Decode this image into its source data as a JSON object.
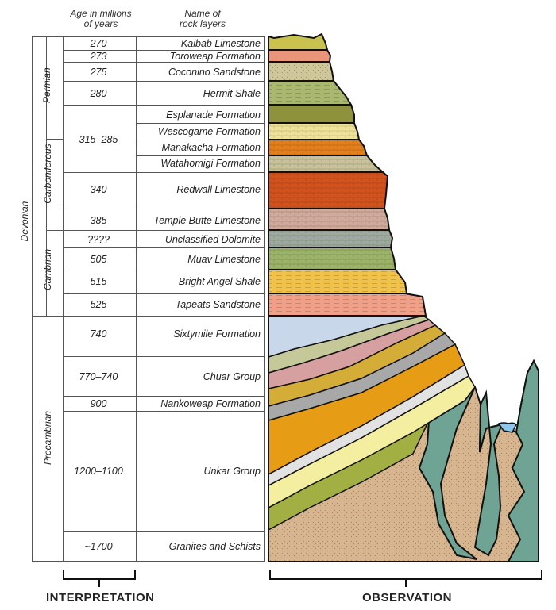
{
  "headers": {
    "age": [
      "Age in millions",
      "of years"
    ],
    "name": [
      "Name of",
      "rock layers"
    ]
  },
  "layers": [
    {
      "age": "270",
      "name": "Kaibab Limestone"
    },
    {
      "age": "273",
      "name": "Toroweap Formation"
    },
    {
      "age": "275",
      "name": "Coconino Sandstone"
    },
    {
      "age": "280",
      "name": "Hermit Shale"
    },
    {
      "age": "",
      "name": "Esplanade Formation"
    },
    {
      "age": "",
      "name": "Wescogame Formation"
    },
    {
      "age": "315–285",
      "name": "Manakacha Formation"
    },
    {
      "age": "",
      "name": "Watahomigi Formation"
    },
    {
      "age": "340",
      "name": "Redwall Limestone"
    },
    {
      "age": "385",
      "name": "Temple Butte Limestone"
    },
    {
      "age": "????",
      "name": "Unclassified Dolomite"
    },
    {
      "age": "505",
      "name": "Muav Limestone"
    },
    {
      "age": "515",
      "name": "Bright Angel Shale"
    },
    {
      "age": "525",
      "name": "Tapeats Sandstone"
    },
    {
      "age": "740",
      "name": "Sixtymile Formation"
    },
    {
      "age": "770–740",
      "name": "Chuar Group"
    },
    {
      "age": "900",
      "name": "Nankoweap Formation"
    },
    {
      "age": "1200–1100",
      "name": "Unkar Group"
    },
    {
      "age": "~1700",
      "name": "Granites and Schists"
    }
  ],
  "eras": {
    "permian": "Permian",
    "carboniferous": "Carboniferous",
    "devonian": "Devonian",
    "cambrian": "Cambrian",
    "precambrian": "Precambrian"
  },
  "footer": {
    "interpretation": "INTERPRETATION",
    "observation": "OBSERVATION"
  },
  "colors": {
    "kaibab": "#c9c24e",
    "toroweap": "#e8957a",
    "coconino": "#cfc79a",
    "hermit": "#a9b86e",
    "esplanade": "#8f923c",
    "wescogame": "#efe39a",
    "manakacha": "#e4801c",
    "watahomigi": "#c9c29a",
    "redwall": "#d2531e",
    "temple_butte": "#d0aa9a",
    "unclassified": "#9eaaa0",
    "muav": "#9cb36a",
    "bright_angel": "#f0c24a",
    "tapeats": "#efa086",
    "sixtymile": "#c8d8ea",
    "granite": "#d7b58f",
    "schist": "#6fa394",
    "water": "#8ec7ee"
  }
}
